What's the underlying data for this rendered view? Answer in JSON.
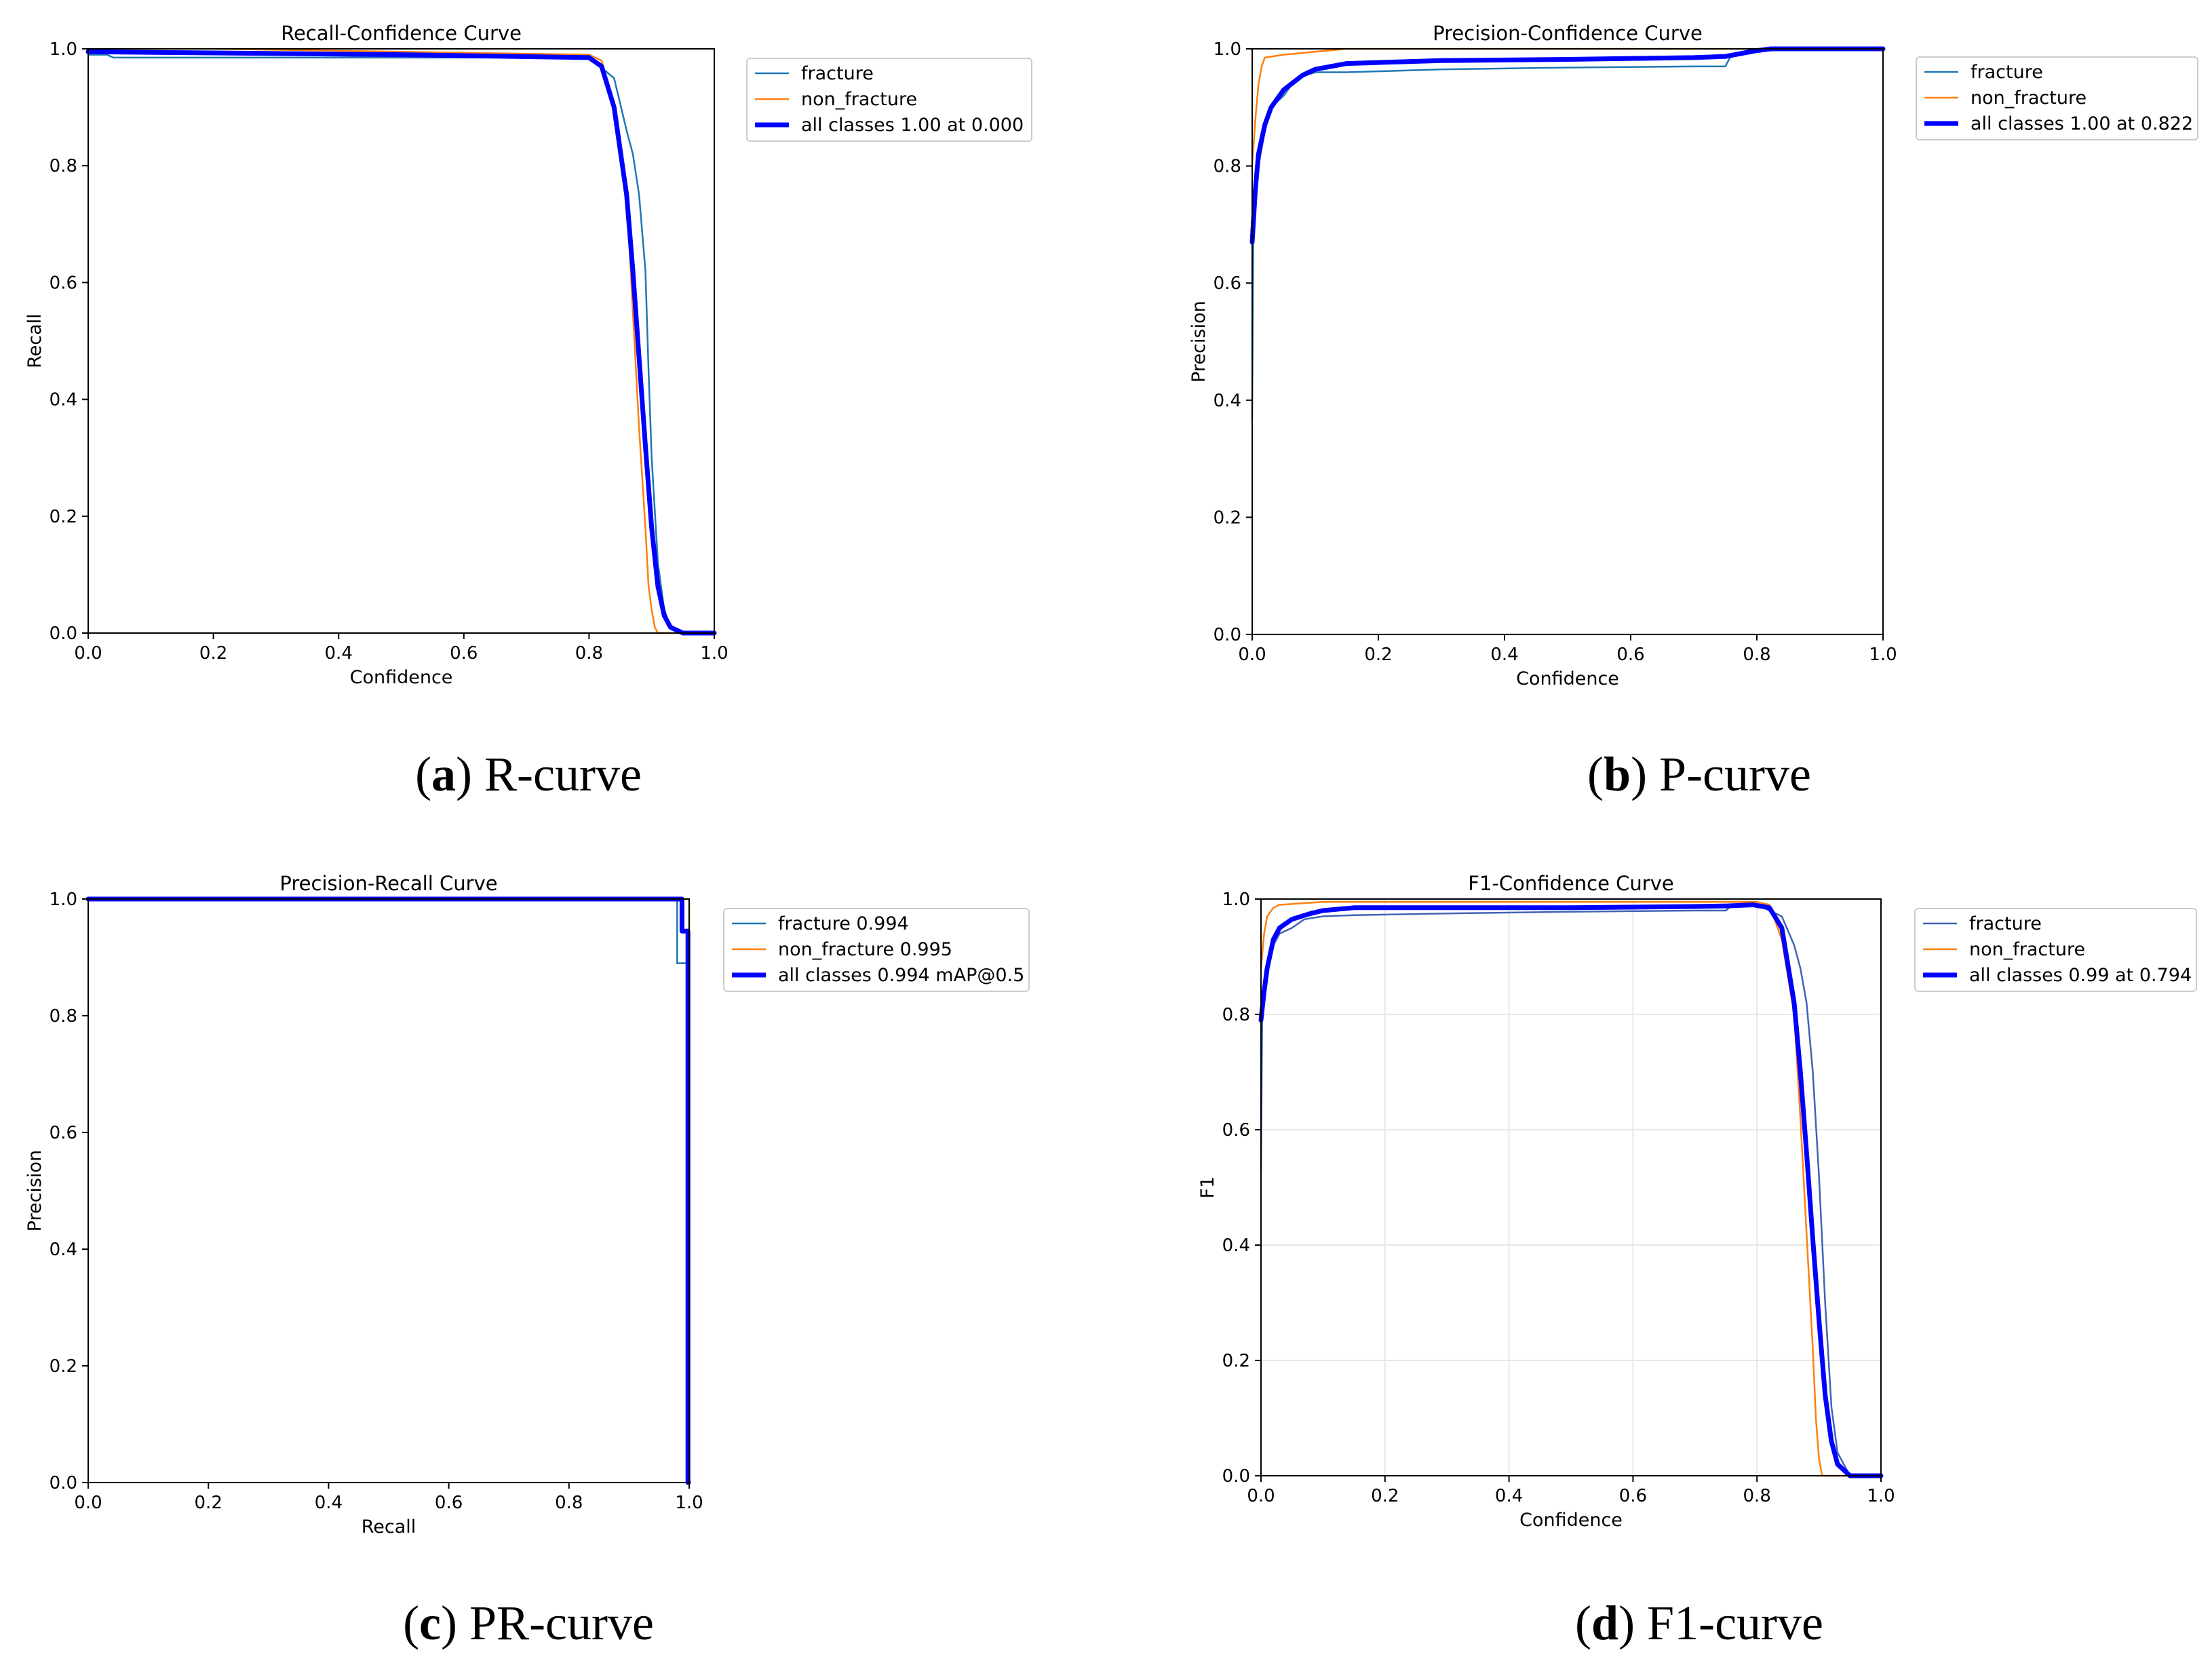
{
  "figure": {
    "colors": {
      "fracture": "#1f77b4",
      "non_fracture": "#ff7f0e",
      "all_classes": "#0000ff",
      "grid": "#e8e8e8"
    }
  },
  "chart_data": [
    {
      "id": "a",
      "type": "line",
      "title": "Recall-Confidence Curve",
      "xlabel": "Confidence",
      "ylabel": "Recall",
      "xlim": [
        0,
        1
      ],
      "ylim": [
        0,
        1
      ],
      "ticks": [
        "0.0",
        "0.2",
        "0.4",
        "0.6",
        "0.8",
        "1.0"
      ],
      "grid": false,
      "legend_position": "outside-right",
      "caption_letter": "a",
      "caption_text": " R-curve",
      "series": [
        {
          "name": "fracture",
          "color": "#1f77b4",
          "width": "thin",
          "x": [
            0,
            0.03,
            0.04,
            0.3,
            0.6,
            0.8,
            0.84,
            0.86,
            0.87,
            0.88,
            0.89,
            0.895,
            0.9,
            0.91,
            0.92,
            0.93,
            0.95,
            1.0
          ],
          "y": [
            0.99,
            0.99,
            0.985,
            0.985,
            0.985,
            0.985,
            0.95,
            0.86,
            0.82,
            0.75,
            0.62,
            0.45,
            0.3,
            0.12,
            0.04,
            0.01,
            0,
            0
          ]
        },
        {
          "name": "non_fracture",
          "color": "#ff7f0e",
          "width": "thin",
          "x": [
            0,
            0.2,
            0.5,
            0.8,
            0.82,
            0.84,
            0.86,
            0.87,
            0.88,
            0.89,
            0.895,
            0.9,
            0.905,
            0.91,
            1.0
          ],
          "y": [
            1.0,
            1.0,
            0.995,
            0.99,
            0.98,
            0.9,
            0.75,
            0.55,
            0.35,
            0.18,
            0.08,
            0.04,
            0.01,
            0,
            0
          ]
        },
        {
          "name": "all classes 1.00 at 0.000",
          "color": "#0000ff",
          "width": "thick",
          "x": [
            0,
            0.2,
            0.5,
            0.8,
            0.82,
            0.84,
            0.86,
            0.87,
            0.88,
            0.89,
            0.9,
            0.91,
            0.92,
            0.93,
            0.95,
            1.0
          ],
          "y": [
            0.995,
            0.993,
            0.99,
            0.985,
            0.97,
            0.9,
            0.75,
            0.62,
            0.47,
            0.32,
            0.18,
            0.08,
            0.03,
            0.01,
            0,
            0
          ]
        }
      ]
    },
    {
      "id": "b",
      "type": "line",
      "title": "Precision-Confidence Curve",
      "xlabel": "Confidence",
      "ylabel": "Precision",
      "xlim": [
        0,
        1
      ],
      "ylim": [
        0,
        1
      ],
      "ticks": [
        "0.0",
        "0.2",
        "0.4",
        "0.6",
        "0.8",
        "1.0"
      ],
      "grid": false,
      "legend_position": "outside-right",
      "caption_letter": "b",
      "caption_text": " P-curve",
      "series": [
        {
          "name": "fracture",
          "color": "#1f77b4",
          "width": "thin",
          "x": [
            0,
            0.002,
            0.01,
            0.02,
            0.03,
            0.05,
            0.07,
            0.1,
            0.15,
            0.3,
            0.5,
            0.7,
            0.75,
            0.76,
            0.78,
            0.8,
            1.0
          ],
          "y": [
            0.37,
            0.7,
            0.8,
            0.86,
            0.9,
            0.92,
            0.95,
            0.96,
            0.96,
            0.965,
            0.968,
            0.97,
            0.97,
            0.99,
            0.995,
            1.0,
            1.0
          ]
        },
        {
          "name": "non_fracture",
          "color": "#ff7f0e",
          "width": "thin",
          "x": [
            0,
            0.005,
            0.01,
            0.015,
            0.02,
            0.05,
            0.1,
            0.15,
            0.2,
            1.0
          ],
          "y": [
            0.8,
            0.88,
            0.94,
            0.97,
            0.985,
            0.99,
            0.995,
            1.0,
            1.0,
            1.0
          ]
        },
        {
          "name": "all classes 1.00 at 0.822",
          "color": "#0000ff",
          "width": "thick",
          "x": [
            0,
            0.005,
            0.01,
            0.02,
            0.03,
            0.05,
            0.08,
            0.1,
            0.15,
            0.3,
            0.5,
            0.7,
            0.75,
            0.78,
            0.8,
            0.822,
            1.0
          ],
          "y": [
            0.67,
            0.76,
            0.82,
            0.87,
            0.9,
            0.93,
            0.955,
            0.965,
            0.975,
            0.98,
            0.982,
            0.985,
            0.987,
            0.993,
            0.997,
            1.0,
            1.0
          ]
        }
      ]
    },
    {
      "id": "c",
      "type": "line",
      "title": "Precision-Recall Curve",
      "xlabel": "Recall",
      "ylabel": "Precision",
      "xlim": [
        0,
        1
      ],
      "ylim": [
        0,
        1
      ],
      "ticks": [
        "0.0",
        "0.2",
        "0.4",
        "0.6",
        "0.8",
        "1.0"
      ],
      "grid": false,
      "legend_position": "outside-right",
      "caption_letter": "c",
      "caption_text": " PR-curve",
      "series": [
        {
          "name": "fracture 0.994",
          "color": "#1f77b4",
          "width": "thin",
          "x": [
            0,
            0.98,
            0.98,
            0.99,
            0.99,
            1.0,
            1.0
          ],
          "y": [
            1.0,
            1.0,
            0.89,
            0.89,
            0.89,
            0.89,
            0
          ]
        },
        {
          "name": "non_fracture 0.995",
          "color": "#ff7f0e",
          "width": "thin",
          "x": [
            0,
            0.99,
            0.995,
            1.0,
            1.0
          ],
          "y": [
            1.0,
            1.0,
            1.0,
            1.0,
            0
          ]
        },
        {
          "name": "all classes 0.994 mAP@0.5",
          "color": "#0000ff",
          "width": "thick",
          "x": [
            0,
            0.988,
            0.988,
            0.998,
            0.998,
            0.999
          ],
          "y": [
            1.0,
            1.0,
            0.945,
            0.945,
            0.0,
            0.0
          ]
        }
      ]
    },
    {
      "id": "d",
      "type": "line",
      "title": "F1-Confidence Curve",
      "xlabel": "Confidence",
      "ylabel": "F1",
      "xlim": [
        0,
        1
      ],
      "ylim": [
        0,
        1
      ],
      "ticks": [
        "0.0",
        "0.2",
        "0.4",
        "0.6",
        "0.8",
        "1.0"
      ],
      "grid": true,
      "legend_position": "outside-right",
      "caption_letter": "d",
      "caption_text": " F1-curve",
      "series": [
        {
          "name": "fracture",
          "color": "#4263b5",
          "width": "thin",
          "x": [
            0,
            0.002,
            0.01,
            0.02,
            0.03,
            0.05,
            0.07,
            0.1,
            0.15,
            0.3,
            0.5,
            0.7,
            0.75,
            0.76,
            0.8,
            0.84,
            0.86,
            0.87,
            0.88,
            0.89,
            0.9,
            0.91,
            0.92,
            0.93,
            0.95,
            1.0
          ],
          "y": [
            0.53,
            0.8,
            0.88,
            0.92,
            0.94,
            0.95,
            0.965,
            0.97,
            0.972,
            0.975,
            0.978,
            0.98,
            0.98,
            0.99,
            0.99,
            0.97,
            0.92,
            0.88,
            0.82,
            0.7,
            0.52,
            0.3,
            0.12,
            0.04,
            0,
            0
          ]
        },
        {
          "name": "non_fracture",
          "color": "#ff7f0e",
          "width": "thin",
          "x": [
            0,
            0.005,
            0.01,
            0.02,
            0.03,
            0.1,
            0.3,
            0.5,
            0.8,
            0.82,
            0.84,
            0.86,
            0.87,
            0.88,
            0.89,
            0.895,
            0.9,
            0.905,
            1.0
          ],
          "y": [
            0.88,
            0.94,
            0.97,
            0.985,
            0.99,
            0.995,
            0.995,
            0.995,
            0.995,
            0.99,
            0.93,
            0.8,
            0.62,
            0.42,
            0.22,
            0.1,
            0.03,
            0,
            0
          ]
        },
        {
          "name": "all classes 0.99 at 0.794",
          "color": "#0000ff",
          "width": "thick",
          "x": [
            0,
            0.005,
            0.01,
            0.02,
            0.03,
            0.05,
            0.08,
            0.1,
            0.15,
            0.3,
            0.5,
            0.7,
            0.75,
            0.794,
            0.82,
            0.84,
            0.86,
            0.87,
            0.88,
            0.89,
            0.9,
            0.91,
            0.92,
            0.93,
            0.95,
            1.0
          ],
          "y": [
            0.79,
            0.84,
            0.88,
            0.93,
            0.95,
            0.965,
            0.975,
            0.98,
            0.985,
            0.985,
            0.985,
            0.987,
            0.988,
            0.99,
            0.985,
            0.95,
            0.82,
            0.7,
            0.56,
            0.41,
            0.27,
            0.14,
            0.06,
            0.02,
            0,
            0
          ]
        }
      ]
    }
  ]
}
